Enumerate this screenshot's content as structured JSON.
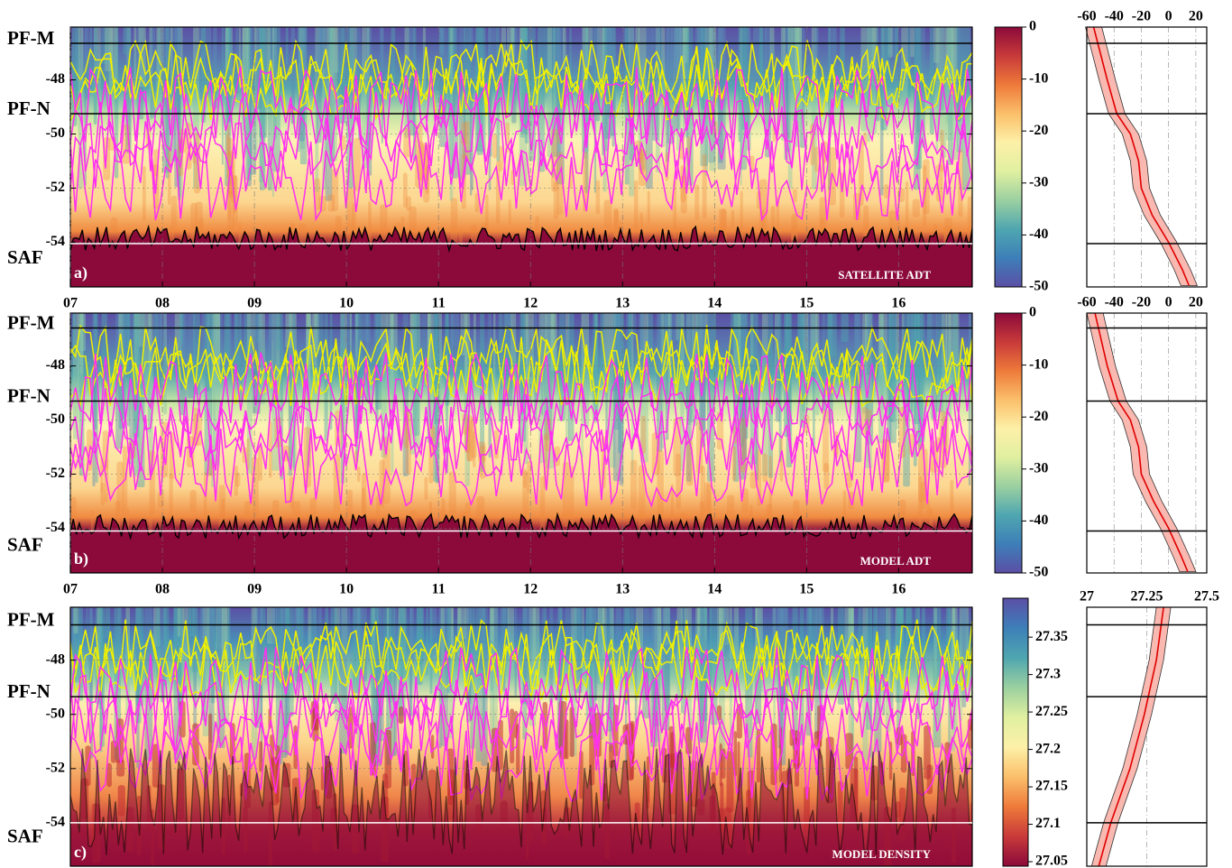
{
  "chart_data": [
    {
      "type": "heatmap",
      "label": "a)",
      "title": "SATELLITE ADT",
      "xlim": [
        7,
        16.8
      ],
      "xticks": [
        {
          "value": 7,
          "label": "07"
        },
        {
          "value": 8,
          "label": "08"
        },
        {
          "value": 9,
          "label": "09"
        },
        {
          "value": 10,
          "label": "10"
        },
        {
          "value": 11,
          "label": "11"
        },
        {
          "value": 12,
          "label": "12"
        },
        {
          "value": 13,
          "label": "13"
        },
        {
          "value": 14,
          "label": "14"
        },
        {
          "value": 15,
          "label": "15"
        },
        {
          "value": 16,
          "label": "16"
        }
      ],
      "ylim": [
        -55.65,
        -46.05
      ],
      "yticks": [
        -48,
        -50,
        -52,
        -54
      ],
      "fronts": [
        {
          "name": "PF-M",
          "lat": -46.65
        },
        {
          "name": "PF-N",
          "lat": -49.25
        },
        {
          "name": "SAF",
          "lat": -54.05
        }
      ]
    },
    {
      "type": "colorbar",
      "ylim": [
        -50,
        0
      ],
      "yticks": [
        0,
        -10,
        -20,
        -30,
        -40,
        -50
      ],
      "colormap": [
        "#5b4fa5",
        "#3d7fb8",
        "#4fa6b0",
        "#9bd0a0",
        "#e0f0a0",
        "#fdf0a8",
        "#fbbf6a",
        "#ee7a3a",
        "#c83a3a",
        "#8b0a3a"
      ]
    },
    {
      "type": "line",
      "xlim": [
        -60,
        28
      ],
      "xticks": [
        -60,
        -40,
        -20,
        0,
        20
      ],
      "ylim": [
        -55.65,
        -46.05
      ],
      "x": [
        -55,
        -45,
        -38,
        -28,
        -22,
        -20,
        -12,
        0,
        10,
        15
      ],
      "y": [
        -46.05,
        -48,
        -49.25,
        -50,
        -51,
        -52,
        -53,
        -54,
        -55,
        -55.6
      ],
      "spread": [
        6,
        6,
        6,
        6,
        6,
        6,
        6,
        6,
        6,
        6
      ],
      "color": "#e00000",
      "band_color": "#f9b8b0",
      "hlines": [
        -46.65,
        -49.25,
        -54.05
      ]
    },
    {
      "type": "heatmap",
      "label": "b)",
      "title": "MODEL ADT",
      "xlim": [
        7,
        16.8
      ],
      "xticks": [
        {
          "value": 7,
          "label": "07"
        },
        {
          "value": 8,
          "label": "08"
        },
        {
          "value": 9,
          "label": "09"
        },
        {
          "value": 10,
          "label": "10"
        },
        {
          "value": 11,
          "label": "11"
        },
        {
          "value": 12,
          "label": "12"
        },
        {
          "value": 13,
          "label": "13"
        },
        {
          "value": 14,
          "label": "14"
        },
        {
          "value": 15,
          "label": "15"
        },
        {
          "value": 16,
          "label": "16"
        }
      ],
      "ylim": [
        -55.65,
        -46.05
      ],
      "yticks": [
        -48,
        -50,
        -52,
        -54
      ],
      "fronts": [
        {
          "name": "PF-M",
          "lat": -46.6
        },
        {
          "name": "PF-N",
          "lat": -49.3
        },
        {
          "name": "SAF",
          "lat": -54.1
        }
      ]
    },
    {
      "type": "colorbar",
      "ylim": [
        -50,
        0
      ],
      "yticks": [
        0,
        -10,
        -20,
        -30,
        -40,
        -50
      ],
      "colormap": [
        "#5b4fa5",
        "#3d7fb8",
        "#4fa6b0",
        "#9bd0a0",
        "#e0f0a0",
        "#fdf0a8",
        "#fbbf6a",
        "#ee7a3a",
        "#c83a3a",
        "#8b0a3a"
      ]
    },
    {
      "type": "line",
      "xlim": [
        -60,
        28
      ],
      "xticks": [
        -60,
        -40,
        -20,
        0,
        20
      ],
      "ylim": [
        -55.65,
        -46.05
      ],
      "x": [
        -54,
        -45,
        -37,
        -28,
        -22,
        -20,
        -11,
        0,
        9,
        14
      ],
      "y": [
        -46.05,
        -48,
        -49.3,
        -50,
        -51,
        -52,
        -53,
        -54,
        -55,
        -55.6
      ],
      "spread": [
        6,
        6,
        6,
        6,
        6,
        6,
        6,
        6,
        6,
        6
      ],
      "color": "#e00000",
      "band_color": "#f9b8b0",
      "hlines": [
        -46.6,
        -49.3,
        -54.1
      ]
    },
    {
      "type": "heatmap",
      "label": "c)",
      "title": "MODEL DENSITY",
      "ylim": [
        -55.6,
        -46.05
      ],
      "yticks": [
        -48,
        -50,
        -52,
        -54
      ],
      "fronts": [
        {
          "name": "PF-M",
          "lat": -46.7
        },
        {
          "name": "PF-N",
          "lat": -49.35
        },
        {
          "name": "SAF",
          "lat": -54
        }
      ]
    },
    {
      "type": "colorbar",
      "ylim": [
        27.044,
        27.402
      ],
      "yticks": [
        27.35,
        27.3,
        27.25,
        27.2,
        27.15,
        27.1,
        27.05
      ],
      "colormap": [
        "#8b0a3a",
        "#c83a3a",
        "#ee7a3a",
        "#fbbf6a",
        "#fdf0a8",
        "#e0f0a0",
        "#9bd0a0",
        "#4fa6b0",
        "#3d7fb8",
        "#5b4fa5"
      ]
    },
    {
      "type": "line",
      "xlim": [
        27,
        27.5
      ],
      "xticks": [
        27,
        27.25,
        27.5
      ],
      "ylim": [
        -55.6,
        -46.05
      ],
      "x": [
        27.32,
        27.29,
        27.24,
        27.18,
        27.1,
        27.05
      ],
      "y": [
        -46.05,
        -48,
        -50,
        -52,
        -54,
        -55.6
      ],
      "spread": [
        0.03,
        0.03,
        0.03,
        0.03,
        0.03,
        0.03
      ],
      "color": "#e00000",
      "band_color": "#f9b8b0",
      "hlines": [
        -46.7,
        -49.35,
        -54
      ]
    }
  ]
}
